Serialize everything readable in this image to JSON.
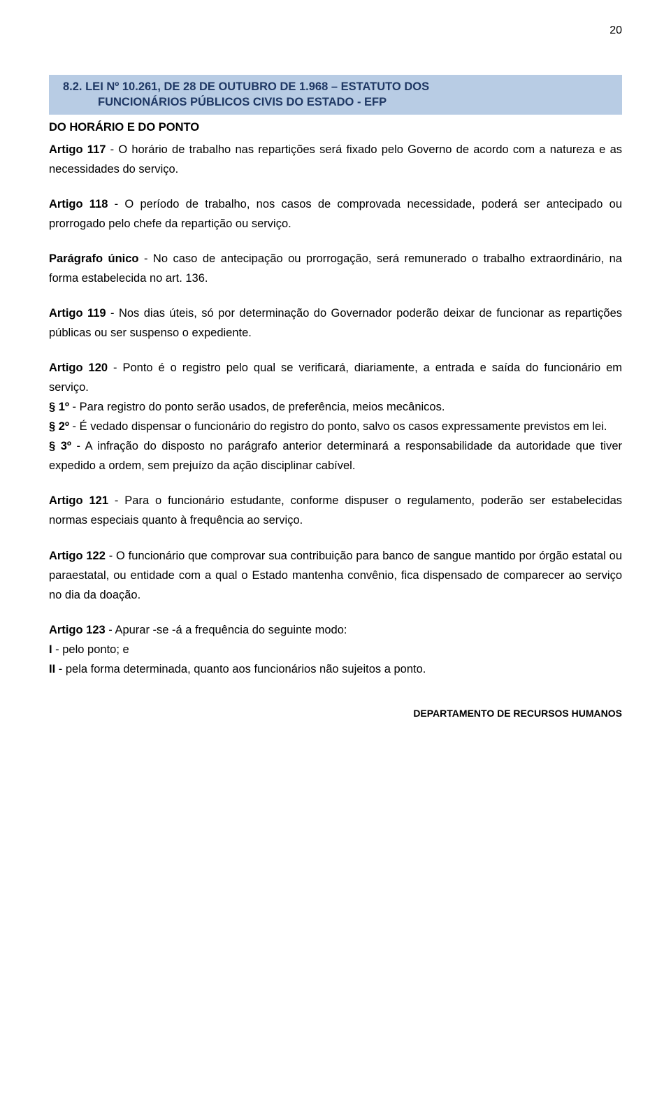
{
  "page_number": "20",
  "header": {
    "line1": "8.2. LEI Nº 10.261, DE 28 DE OUTUBRO DE 1.968 – ESTATUTO DOS",
    "line2": "FUNCIONÁRIOS PÚBLICOS CIVIS DO ESTADO - EFP"
  },
  "section_title": "DO HORÁRIO E DO PONTO",
  "articles": {
    "a117": {
      "label": "Artigo 117",
      "text": " - O horário de trabalho nas repartições será fixado pelo Governo de acordo com a natureza e as necessidades do serviço."
    },
    "a118": {
      "label": "Artigo 118",
      "text": " - O período de trabalho, nos casos de comprovada necessidade, poderá ser antecipado ou prorrogado pelo chefe da repartição ou serviço."
    },
    "paragrafo_unico": {
      "label": "Parágrafo único",
      "text": " - No caso de antecipação ou prorrogação, será remunerado o trabalho extraordinário, na forma estabelecida no art. 136."
    },
    "a119": {
      "label": "Artigo 119",
      "text": " - Nos dias úteis, só por determinação do Governador poderão deixar de funcionar as repartições públicas ou ser suspenso o expediente."
    },
    "a120": {
      "label": "Artigo 120",
      "text": " - Ponto é o registro pelo qual se verificará, diariamente, a entrada e saída do funcionário em serviço.",
      "p1_label": "§ 1º",
      "p1_text": " - Para registro do ponto serão usados, de preferência, meios mecânicos.",
      "p2_label": "§ 2º",
      "p2_text": " - É vedado dispensar o funcionário do registro do ponto, salvo os casos expressamente previstos em lei.",
      "p3_label": "§ 3º",
      "p3_text": " - A infração do disposto no parágrafo anterior determinará a responsabilidade da autoridade que tiver expedido a ordem, sem prejuízo da ação disciplinar cabível."
    },
    "a121": {
      "label": "Artigo 121",
      "text": " - Para o funcionário estudante, conforme dispuser o regulamento, poderão ser estabelecidas normas especiais quanto à frequência ao serviço."
    },
    "a122": {
      "label": "Artigo 122",
      "text": " - O funcionário que comprovar sua contribuição para banco de sangue mantido por órgão estatal ou paraestatal, ou entidade com a qual o Estado mantenha convênio, fica dispensado de comparecer ao serviço no dia da doação."
    },
    "a123": {
      "label": "Artigo 123",
      "text": " - Apurar -se -á a frequência do seguinte modo:",
      "i1_label": "I",
      "i1_text": " - pelo ponto; e",
      "i2_label": "II",
      "i2_text": " - pela forma determinada, quanto aos funcionários não sujeitos a ponto."
    }
  },
  "footer": "DEPARTAMENTO  DE RECURSOS  HUMANOS",
  "colors": {
    "header_bg": "#b8cce4",
    "header_text": "#1f3864",
    "body_text": "#000000",
    "page_bg": "#ffffff"
  },
  "fonts": {
    "body_family": "Arial",
    "body_size_pt": 12,
    "header_size_pt": 12
  }
}
